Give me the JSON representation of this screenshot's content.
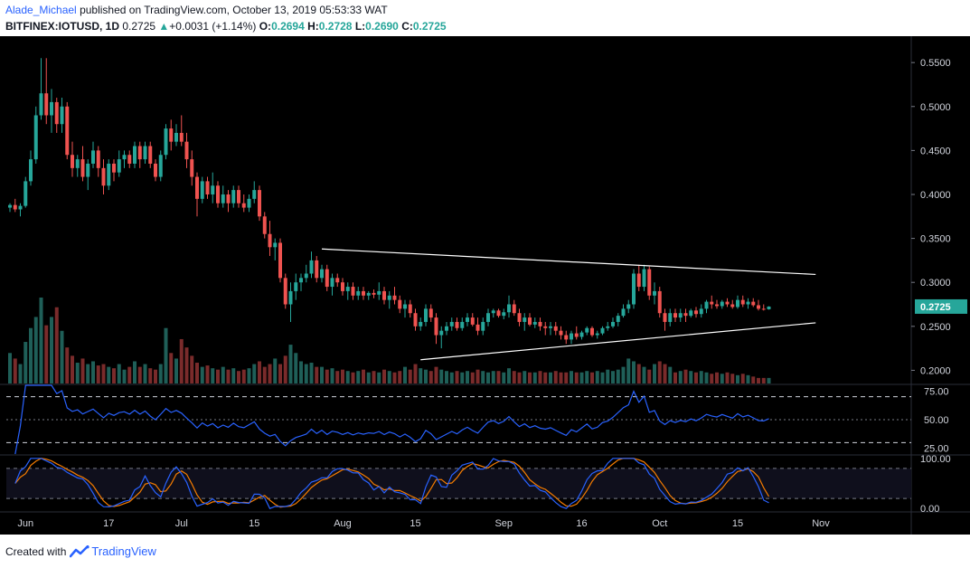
{
  "header": {
    "author": "Alade_Michael",
    "published_text": "published on TradingView.com, October 13, 2019 05:53:33 WAT",
    "symbol": "BITFINEX:IOTUSD, 1D",
    "last": "0.2725",
    "change_arrow": "▲",
    "change": "+0.0031 (+1.14%)",
    "o_label": "O:",
    "o": "0.2694",
    "h_label": "H:",
    "h": "0.2728",
    "l_label": "L:",
    "l": "0.2690",
    "c_label": "C:",
    "c": "0.2725"
  },
  "footer": {
    "created_with": "Created with",
    "brand": "TradingView",
    "logo_icon": "tradingview-logo-icon"
  },
  "colors": {
    "background": "#000000",
    "up": "#26a69a",
    "down": "#ef5350",
    "rsi": "#2962ff",
    "stoch_k": "#2962ff",
    "stoch_d": "#f57c00",
    "axis_text": "#d1d4dc",
    "price_badge": "#26a69a"
  },
  "chart_data": {
    "type": "candlestick",
    "price_axis": {
      "ticks": [
        "0.5500",
        "0.5000",
        "0.4500",
        "0.4000",
        "0.3500",
        "0.3000",
        "0.2500",
        "0.2000"
      ],
      "range": [
        0.185,
        0.58
      ]
    },
    "price_badge": "0.2725",
    "x_axis": {
      "labels": [
        "Jun",
        "17",
        "Jul",
        "15",
        "Aug",
        "15",
        "Sep",
        "16",
        "Oct",
        "15",
        "Nov"
      ],
      "label_days": [
        3,
        19,
        33,
        47,
        64,
        78,
        95,
        110,
        125,
        140,
        156
      ]
    },
    "candles": [
      [
        0.385,
        0.39,
        0.38,
        0.388
      ],
      [
        0.388,
        0.395,
        0.38,
        0.383
      ],
      [
        0.383,
        0.39,
        0.375,
        0.387
      ],
      [
        0.387,
        0.42,
        0.385,
        0.415
      ],
      [
        0.415,
        0.45,
        0.41,
        0.44
      ],
      [
        0.44,
        0.5,
        0.435,
        0.49
      ],
      [
        0.49,
        0.555,
        0.485,
        0.515
      ],
      [
        0.515,
        0.555,
        0.48,
        0.49
      ],
      [
        0.49,
        0.52,
        0.47,
        0.505
      ],
      [
        0.505,
        0.51,
        0.47,
        0.48
      ],
      [
        0.48,
        0.51,
        0.47,
        0.5
      ],
      [
        0.5,
        0.505,
        0.44,
        0.445
      ],
      [
        0.445,
        0.46,
        0.42,
        0.43
      ],
      [
        0.43,
        0.445,
        0.42,
        0.44
      ],
      [
        0.44,
        0.455,
        0.415,
        0.42
      ],
      [
        0.42,
        0.44,
        0.405,
        0.435
      ],
      [
        0.435,
        0.46,
        0.43,
        0.45
      ],
      [
        0.45,
        0.455,
        0.42,
        0.43
      ],
      [
        0.43,
        0.44,
        0.4,
        0.41
      ],
      [
        0.41,
        0.44,
        0.405,
        0.435
      ],
      [
        0.435,
        0.44,
        0.415,
        0.425
      ],
      [
        0.425,
        0.45,
        0.42,
        0.44
      ],
      [
        0.44,
        0.45,
        0.43,
        0.445
      ],
      [
        0.445,
        0.45,
        0.43,
        0.435
      ],
      [
        0.435,
        0.46,
        0.43,
        0.455
      ],
      [
        0.455,
        0.46,
        0.43,
        0.44
      ],
      [
        0.44,
        0.46,
        0.435,
        0.455
      ],
      [
        0.455,
        0.46,
        0.43,
        0.435
      ],
      [
        0.435,
        0.44,
        0.415,
        0.42
      ],
      [
        0.42,
        0.45,
        0.415,
        0.445
      ],
      [
        0.445,
        0.48,
        0.44,
        0.475
      ],
      [
        0.475,
        0.485,
        0.45,
        0.46
      ],
      [
        0.46,
        0.48,
        0.455,
        0.47
      ],
      [
        0.47,
        0.49,
        0.455,
        0.46
      ],
      [
        0.46,
        0.47,
        0.43,
        0.44
      ],
      [
        0.44,
        0.45,
        0.41,
        0.42
      ],
      [
        0.42,
        0.425,
        0.375,
        0.395
      ],
      [
        0.395,
        0.42,
        0.39,
        0.415
      ],
      [
        0.415,
        0.42,
        0.395,
        0.4
      ],
      [
        0.4,
        0.425,
        0.39,
        0.41
      ],
      [
        0.41,
        0.415,
        0.385,
        0.39
      ],
      [
        0.39,
        0.41,
        0.385,
        0.4
      ],
      [
        0.4,
        0.405,
        0.38,
        0.39
      ],
      [
        0.39,
        0.41,
        0.385,
        0.405
      ],
      [
        0.405,
        0.41,
        0.385,
        0.39
      ],
      [
        0.39,
        0.4,
        0.38,
        0.385
      ],
      [
        0.385,
        0.4,
        0.38,
        0.395
      ],
      [
        0.395,
        0.415,
        0.39,
        0.405
      ],
      [
        0.405,
        0.41,
        0.37,
        0.375
      ],
      [
        0.375,
        0.38,
        0.35,
        0.355
      ],
      [
        0.355,
        0.37,
        0.33,
        0.34
      ],
      [
        0.34,
        0.35,
        0.325,
        0.345
      ],
      [
        0.345,
        0.35,
        0.3,
        0.305
      ],
      [
        0.305,
        0.31,
        0.27,
        0.275
      ],
      [
        0.275,
        0.3,
        0.255,
        0.29
      ],
      [
        0.29,
        0.31,
        0.28,
        0.3
      ],
      [
        0.3,
        0.31,
        0.29,
        0.305
      ],
      [
        0.305,
        0.32,
        0.3,
        0.31
      ],
      [
        0.31,
        0.335,
        0.305,
        0.325
      ],
      [
        0.325,
        0.33,
        0.3,
        0.305
      ],
      [
        0.305,
        0.32,
        0.3,
        0.315
      ],
      [
        0.315,
        0.32,
        0.29,
        0.295
      ],
      [
        0.295,
        0.31,
        0.285,
        0.305
      ],
      [
        0.305,
        0.31,
        0.295,
        0.3
      ],
      [
        0.3,
        0.305,
        0.285,
        0.29
      ],
      [
        0.29,
        0.3,
        0.28,
        0.295
      ],
      [
        0.295,
        0.3,
        0.28,
        0.285
      ],
      [
        0.285,
        0.295,
        0.28,
        0.29
      ],
      [
        0.29,
        0.295,
        0.28,
        0.285
      ],
      [
        0.285,
        0.29,
        0.28,
        0.288
      ],
      [
        0.288,
        0.292,
        0.282,
        0.286
      ],
      [
        0.286,
        0.3,
        0.28,
        0.29
      ],
      [
        0.29,
        0.295,
        0.275,
        0.28
      ],
      [
        0.28,
        0.29,
        0.27,
        0.285
      ],
      [
        0.285,
        0.295,
        0.275,
        0.28
      ],
      [
        0.28,
        0.285,
        0.265,
        0.27
      ],
      [
        0.27,
        0.28,
        0.26,
        0.275
      ],
      [
        0.275,
        0.28,
        0.26,
        0.265
      ],
      [
        0.265,
        0.27,
        0.245,
        0.25
      ],
      [
        0.25,
        0.26,
        0.245,
        0.255
      ],
      [
        0.255,
        0.275,
        0.25,
        0.27
      ],
      [
        0.27,
        0.275,
        0.255,
        0.26
      ],
      [
        0.26,
        0.265,
        0.23,
        0.24
      ],
      [
        0.24,
        0.25,
        0.225,
        0.245
      ],
      [
        0.245,
        0.255,
        0.24,
        0.25
      ],
      [
        0.25,
        0.26,
        0.245,
        0.255
      ],
      [
        0.255,
        0.26,
        0.245,
        0.248
      ],
      [
        0.248,
        0.26,
        0.245,
        0.255
      ],
      [
        0.255,
        0.265,
        0.25,
        0.26
      ],
      [
        0.26,
        0.265,
        0.25,
        0.252
      ],
      [
        0.252,
        0.26,
        0.24,
        0.245
      ],
      [
        0.245,
        0.26,
        0.24,
        0.255
      ],
      [
        0.255,
        0.27,
        0.25,
        0.265
      ],
      [
        0.265,
        0.27,
        0.26,
        0.268
      ],
      [
        0.268,
        0.27,
        0.26,
        0.262
      ],
      [
        0.262,
        0.27,
        0.258,
        0.266
      ],
      [
        0.266,
        0.285,
        0.26,
        0.275
      ],
      [
        0.275,
        0.28,
        0.262,
        0.265
      ],
      [
        0.265,
        0.27,
        0.25,
        0.255
      ],
      [
        0.255,
        0.265,
        0.245,
        0.26
      ],
      [
        0.26,
        0.265,
        0.25,
        0.252
      ],
      [
        0.252,
        0.26,
        0.248,
        0.255
      ],
      [
        0.255,
        0.26,
        0.245,
        0.25
      ],
      [
        0.25,
        0.255,
        0.24,
        0.248
      ],
      [
        0.248,
        0.255,
        0.24,
        0.25
      ],
      [
        0.25,
        0.255,
        0.24,
        0.245
      ],
      [
        0.245,
        0.25,
        0.235,
        0.24
      ],
      [
        0.24,
        0.245,
        0.23,
        0.235
      ],
      [
        0.235,
        0.245,
        0.23,
        0.242
      ],
      [
        0.242,
        0.25,
        0.235,
        0.238
      ],
      [
        0.238,
        0.245,
        0.235,
        0.243
      ],
      [
        0.243,
        0.25,
        0.24,
        0.248
      ],
      [
        0.248,
        0.25,
        0.238,
        0.24
      ],
      [
        0.24,
        0.245,
        0.236,
        0.242
      ],
      [
        0.242,
        0.25,
        0.24,
        0.248
      ],
      [
        0.248,
        0.255,
        0.245,
        0.25
      ],
      [
        0.25,
        0.26,
        0.248,
        0.255
      ],
      [
        0.255,
        0.265,
        0.25,
        0.262
      ],
      [
        0.262,
        0.275,
        0.26,
        0.27
      ],
      [
        0.27,
        0.28,
        0.265,
        0.275
      ],
      [
        0.275,
        0.315,
        0.27,
        0.31
      ],
      [
        0.31,
        0.32,
        0.29,
        0.295
      ],
      [
        0.295,
        0.32,
        0.29,
        0.315
      ],
      [
        0.315,
        0.318,
        0.28,
        0.285
      ],
      [
        0.285,
        0.3,
        0.275,
        0.29
      ],
      [
        0.29,
        0.295,
        0.26,
        0.265
      ],
      [
        0.265,
        0.27,
        0.245,
        0.255
      ],
      [
        0.255,
        0.27,
        0.25,
        0.265
      ],
      [
        0.265,
        0.27,
        0.255,
        0.26
      ],
      [
        0.26,
        0.27,
        0.255,
        0.265
      ],
      [
        0.265,
        0.27,
        0.255,
        0.262
      ],
      [
        0.262,
        0.27,
        0.26,
        0.268
      ],
      [
        0.268,
        0.272,
        0.26,
        0.264
      ],
      [
        0.264,
        0.275,
        0.26,
        0.27
      ],
      [
        0.27,
        0.28,
        0.265,
        0.278
      ],
      [
        0.278,
        0.285,
        0.27,
        0.275
      ],
      [
        0.275,
        0.28,
        0.27,
        0.273
      ],
      [
        0.273,
        0.28,
        0.27,
        0.278
      ],
      [
        0.278,
        0.282,
        0.272,
        0.275
      ],
      [
        0.275,
        0.28,
        0.27,
        0.272
      ],
      [
        0.272,
        0.285,
        0.27,
        0.28
      ],
      [
        0.28,
        0.285,
        0.272,
        0.275
      ],
      [
        0.275,
        0.282,
        0.27,
        0.278
      ],
      [
        0.278,
        0.282,
        0.272,
        0.274
      ],
      [
        0.274,
        0.28,
        0.268,
        0.27
      ],
      [
        0.27,
        0.275,
        0.268,
        0.2694
      ],
      [
        0.2694,
        0.2728,
        0.269,
        0.2725
      ]
    ],
    "volume": [
      22,
      18,
      14,
      30,
      40,
      48,
      62,
      42,
      48,
      55,
      38,
      26,
      20,
      15,
      18,
      14,
      16,
      13,
      14,
      12,
      11,
      14,
      10,
      12,
      16,
      12,
      14,
      11,
      10,
      14,
      40,
      22,
      18,
      32,
      26,
      20,
      15,
      12,
      13,
      11,
      10,
      12,
      10,
      11,
      9,
      10,
      11,
      14,
      16,
      12,
      14,
      18,
      14,
      20,
      28,
      22,
      16,
      14,
      15,
      12,
      12,
      10,
      11,
      9,
      10,
      9,
      8,
      9,
      10,
      8,
      9,
      8,
      10,
      9,
      8,
      9,
      12,
      10,
      14,
      11,
      10,
      9,
      12,
      10,
      9,
      8,
      9,
      8,
      9,
      8,
      10,
      9,
      8,
      9,
      9,
      8,
      11,
      9,
      8,
      9,
      8,
      8,
      9,
      8,
      8,
      9,
      8,
      8,
      9,
      8,
      8,
      9,
      8,
      9,
      8,
      10,
      9,
      10,
      12,
      18,
      16,
      14,
      12,
      10,
      14,
      16,
      14,
      12,
      8,
      9,
      10,
      9,
      8,
      9,
      8,
      7,
      8,
      7,
      8,
      7,
      6,
      7,
      6,
      5,
      4,
      4,
      4
    ],
    "trendlines": [
      {
        "from": [
          60,
          0.338
        ],
        "to": [
          155,
          0.309
        ]
      },
      {
        "from": [
          79,
          0.212
        ],
        "to": [
          155,
          0.254
        ]
      }
    ],
    "rsi": {
      "ticks": [
        "75.00",
        "50.00",
        "25.00"
      ],
      "range": [
        20,
        80
      ],
      "levels": [
        70,
        30
      ],
      "mid": 50
    },
    "stoch": {
      "ticks": [
        "100.00",
        "0.00"
      ],
      "range": [
        -5,
        105
      ],
      "levels": [
        80,
        20
      ]
    }
  }
}
